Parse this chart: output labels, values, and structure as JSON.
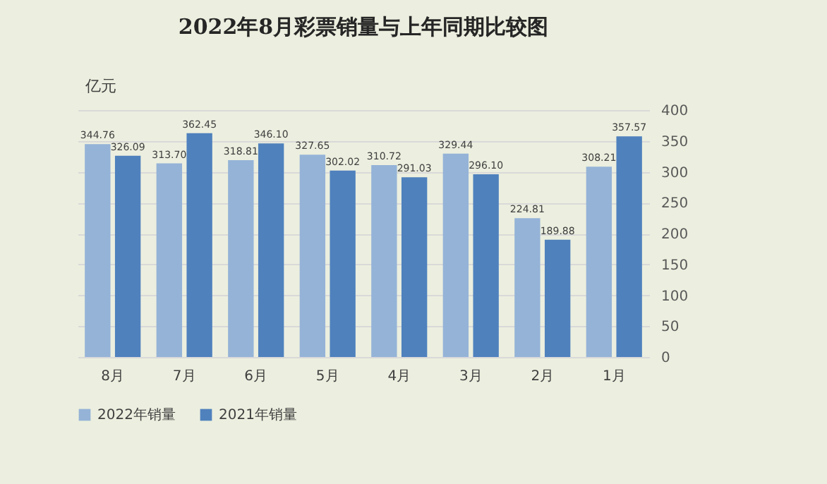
{
  "chart_data": {
    "type": "bar",
    "title": "2022年8月彩票销量与上年同期比较图",
    "ylabel": "亿元",
    "categories": [
      "8月",
      "7月",
      "6月",
      "5月",
      "4月",
      "3月",
      "2月",
      "1月"
    ],
    "series": [
      {
        "name": "2022年销量",
        "color": "#95b3d7",
        "values": [
          344.76,
          313.7,
          318.81,
          327.65,
          310.72,
          329.44,
          224.81,
          308.21
        ],
        "value_labels": [
          "344.76",
          "313.70",
          "318.81",
          "327.65",
          "310.72",
          "329.44",
          "224.81",
          "308.21"
        ]
      },
      {
        "name": "2021年销量",
        "color": "#4f81bd",
        "values": [
          326.09,
          362.45,
          346.1,
          302.02,
          291.03,
          296.1,
          189.88,
          357.57
        ],
        "value_labels": [
          "326.09",
          "362.45",
          "346.10",
          "302.02",
          "291.03",
          "296.10",
          "189.88",
          "357.57"
        ]
      }
    ],
    "ylim": [
      0,
      400
    ],
    "yticks": [
      0,
      50,
      100,
      150,
      200,
      250,
      300,
      350,
      400
    ],
    "grid": "y",
    "legend": "bottom"
  }
}
